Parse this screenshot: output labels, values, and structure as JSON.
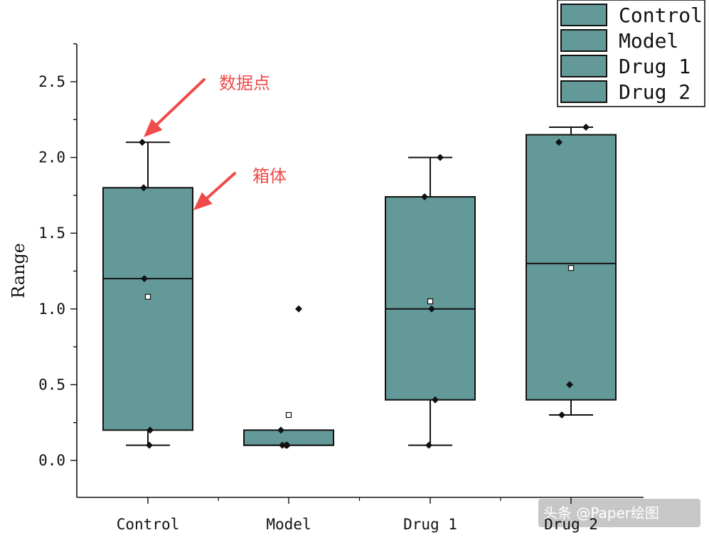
{
  "chart_data": {
    "type": "box",
    "categories": [
      "Control",
      "Model",
      "Drug 1",
      "Drug 2"
    ],
    "ylabel": "Range",
    "xlabel": "",
    "ylim": [
      -0.25,
      2.75
    ],
    "yticks": [
      "0.0",
      "0.5",
      "1.0",
      "1.5",
      "2.0",
      "2.5"
    ],
    "box_color": "#649999",
    "series": [
      {
        "name": "Control",
        "q1": 0.2,
        "median": 1.2,
        "q3": 1.8,
        "whisker_low": 0.1,
        "whisker_high": 2.1,
        "mean": 1.08,
        "points": [
          2.1,
          1.8,
          1.2,
          0.2,
          0.1
        ]
      },
      {
        "name": "Model",
        "q1": 0.1,
        "median": 0.1,
        "q3": 0.2,
        "whisker_low": 0.1,
        "whisker_high": 0.2,
        "mean": 0.3,
        "points": [
          1.0,
          0.2,
          0.1,
          0.1,
          0.1
        ]
      },
      {
        "name": "Drug 1",
        "q1": 0.4,
        "median": 1.0,
        "q3": 1.74,
        "whisker_low": 0.1,
        "whisker_high": 2.0,
        "mean": 1.05,
        "points": [
          2.0,
          1.74,
          1.0,
          0.4,
          0.1
        ]
      },
      {
        "name": "Drug 2",
        "q1": 0.4,
        "median": 1.3,
        "q3": 2.15,
        "whisker_low": 0.3,
        "whisker_high": 2.2,
        "mean": 1.27,
        "points": [
          2.2,
          2.1,
          0.5,
          0.3
        ]
      }
    ],
    "legend": {
      "placement": "top-right",
      "entries": [
        "Control",
        "Model",
        "Drug 1",
        "Drug 2"
      ]
    },
    "annotations": [
      {
        "text": "数据点",
        "color": "#f04a4a"
      },
      {
        "text": "箱体",
        "color": "#f04a4a"
      }
    ]
  },
  "watermark": {
    "text": "头条 @Paper绘图"
  }
}
